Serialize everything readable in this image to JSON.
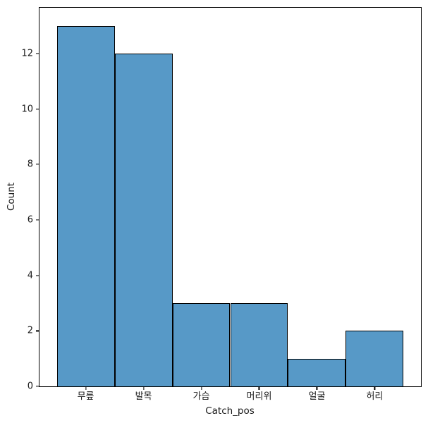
{
  "chart_data": {
    "type": "bar",
    "subtype": "histogram-countplot",
    "title": "",
    "xlabel": "Catch_pos",
    "ylabel": "Count",
    "categories": [
      "무릎",
      "발목",
      "가슴",
      "머리위",
      "얼굴",
      "허리"
    ],
    "values": [
      13,
      12,
      3,
      3,
      1,
      2
    ],
    "yticks": [
      0,
      2,
      4,
      6,
      8,
      10,
      12
    ],
    "ylim": [
      0,
      13.65
    ],
    "grid": false,
    "legend": "none",
    "bar_color": "#5799C7",
    "bar_edge_color": "#000000",
    "spine_color": "#000000",
    "bars_contiguous": true,
    "x_pad_units": 0.3
  }
}
